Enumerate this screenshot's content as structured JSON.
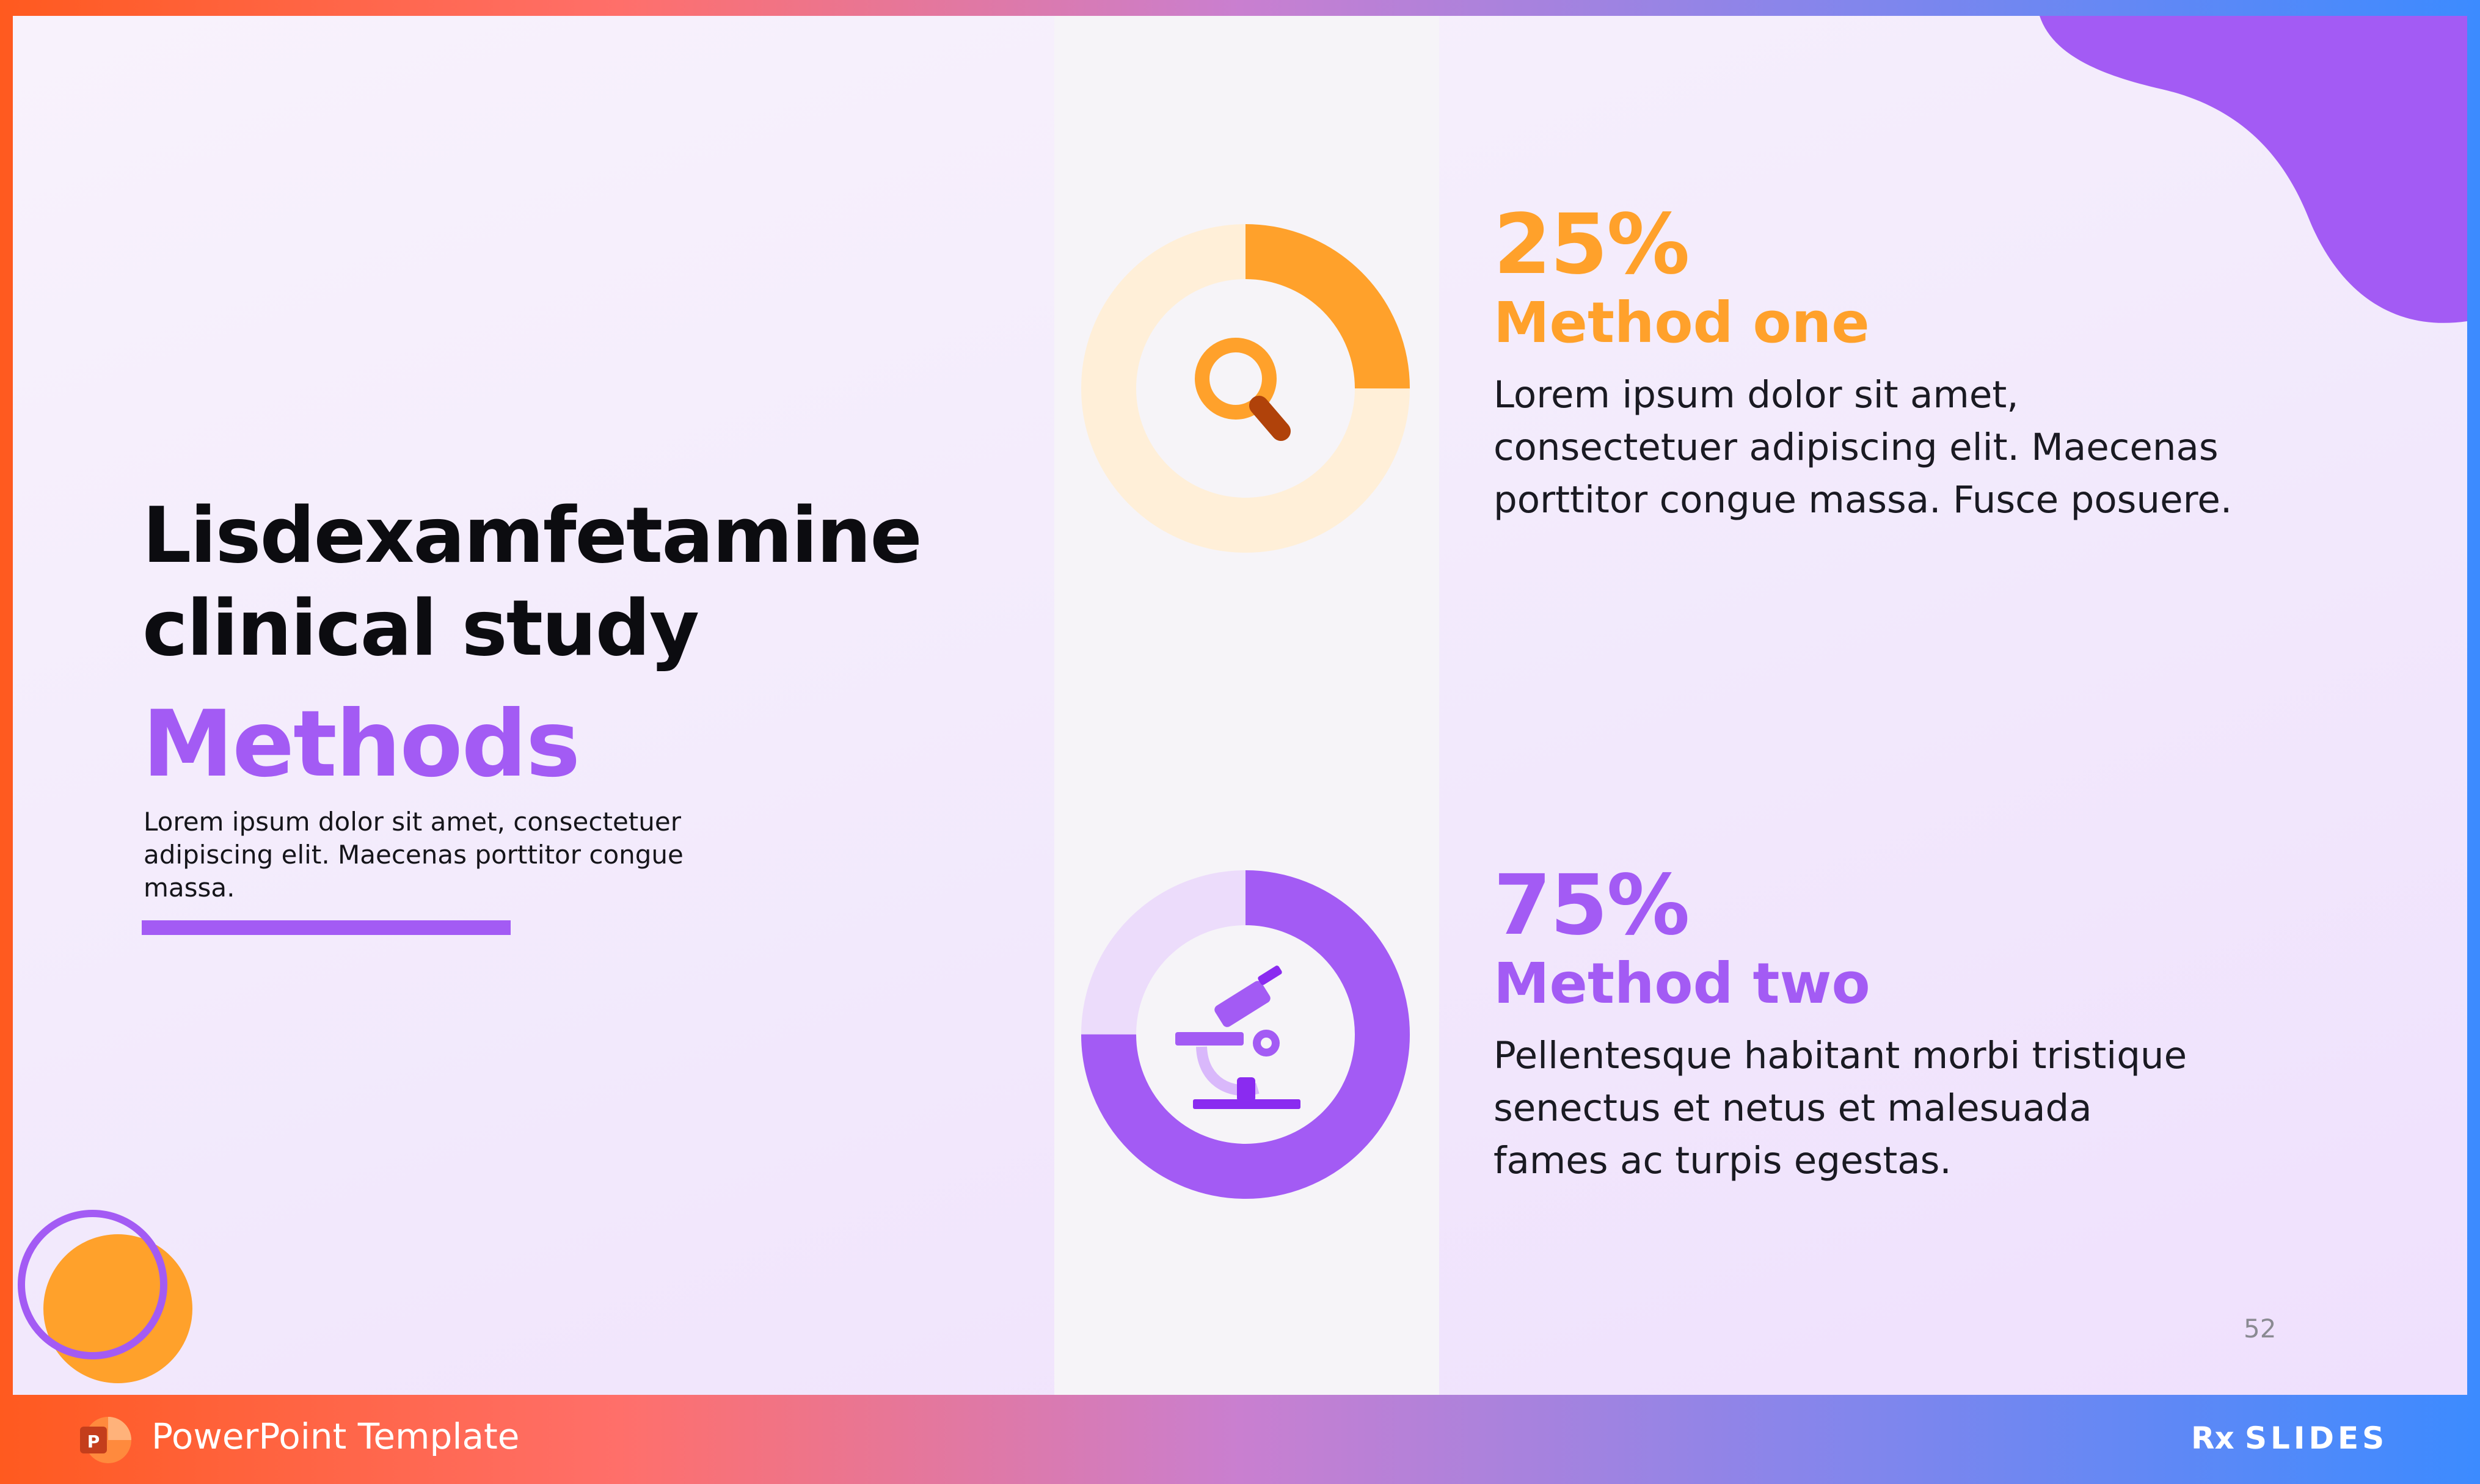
{
  "slide": {
    "title_line1": "Lisdexamfetamine",
    "title_line2": "clinical study",
    "subtitle": "Methods",
    "intro": "Lorem ipsum dolor sit amet, consectetuer adipiscing elit. Maecenas porttitor congue massa.",
    "page_number": "52"
  },
  "methods": [
    {
      "percent_label": "25%",
      "percent": 25,
      "label": "Method one",
      "text_line1": "Lorem ipsum dolor sit amet,",
      "text_line2": "consectetuer adipiscing elit. Maecenas",
      "text_line3": "porttitor congue massa. Fusce posuere.",
      "icon": "magnifier-icon",
      "color": "#ffa12b",
      "track_color": "#ffefd8"
    },
    {
      "percent_label": "75%",
      "percent": 75,
      "label": "Method two",
      "text_line1": "Pellentesque habitant morbi tristique",
      "text_line2": "senectus et netus et malesuada",
      "text_line3": "fames ac turpis egestas.",
      "icon": "microscope-icon",
      "color": "#a35bf4",
      "track_color": "#ecdcfb"
    }
  ],
  "footer": {
    "label": "PowerPoint Template",
    "app_icon": "powerpoint-icon",
    "logo_text": "SLIDES",
    "logo_mark": "Rx"
  },
  "colors": {
    "accent_purple": "#a35bf4",
    "accent_orange": "#ffa12b"
  }
}
